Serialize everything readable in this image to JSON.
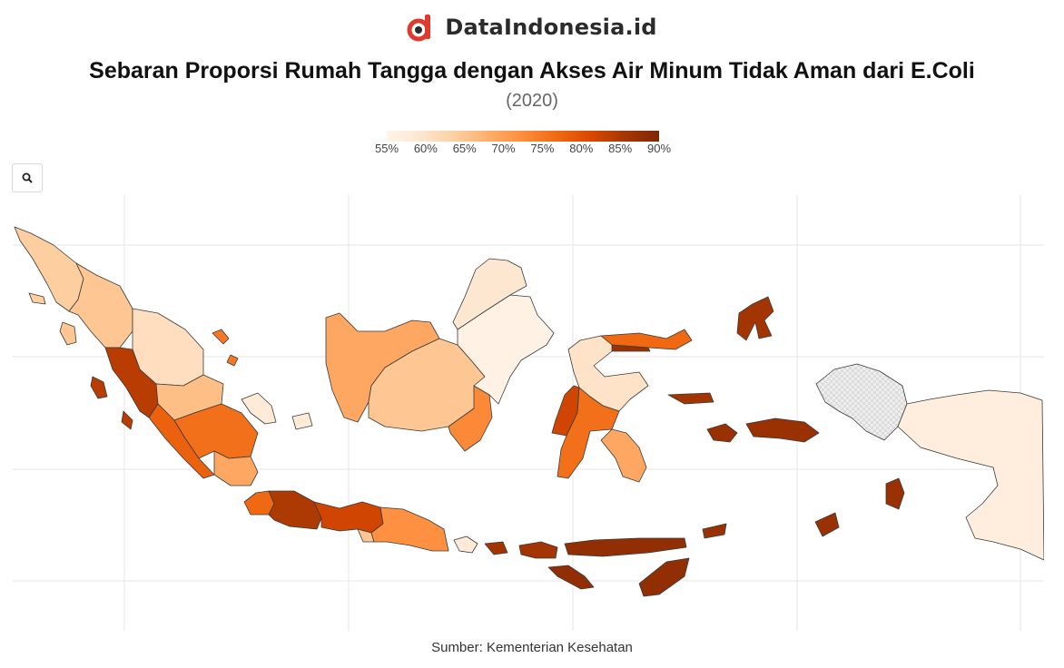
{
  "brand": {
    "name": "DataIndonesia.id"
  },
  "chart": {
    "title": "Sebaran Proporsi Rumah Tangga dengan Akses Air Minum Tidak Aman dari E.Coli",
    "subtitle": "(2020)",
    "source": "Sumber: Kementerian Kesehatan",
    "colors": {
      "low": "#fff5eb",
      "high": "#7f2704",
      "no_data": "#e5e5e5"
    }
  },
  "legend": {
    "ticks": [
      "55%",
      "60%",
      "65%",
      "70%",
      "75%",
      "80%",
      "85%",
      "90%"
    ],
    "min": 55,
    "max": 90
  },
  "toolbar": {
    "zoom_icon": "search-icon"
  },
  "chart_data": {
    "type": "choropleth",
    "value_unit": "%",
    "range": [
      55,
      90
    ],
    "regions": [
      {
        "name": "Aceh",
        "value": 64
      },
      {
        "name": "Sumatera Utara",
        "value": 65
      },
      {
        "name": "Riau",
        "value": 61
      },
      {
        "name": "Kepulauan Riau",
        "value": 75
      },
      {
        "name": "Sumatera Barat",
        "value": 84
      },
      {
        "name": "Jambi",
        "value": 66
      },
      {
        "name": "Sumatera Selatan",
        "value": 76
      },
      {
        "name": "Bengkulu",
        "value": 78
      },
      {
        "name": "Kepulauan Bangka Belitung",
        "value": 58
      },
      {
        "name": "Lampung",
        "value": 69
      },
      {
        "name": "Banten",
        "value": 77
      },
      {
        "name": "Jawa Barat",
        "value": 85
      },
      {
        "name": "Jawa Tengah",
        "value": 82
      },
      {
        "name": "DI Yogyakarta",
        "value": 65
      },
      {
        "name": "Jawa Timur",
        "value": 72
      },
      {
        "name": "Bali",
        "value": 58
      },
      {
        "name": "Nusa Tenggara Barat",
        "value": 86
      },
      {
        "name": "Nusa Tenggara Timur",
        "value": 88
      },
      {
        "name": "Kalimantan Barat",
        "value": 69
      },
      {
        "name": "Kalimantan Tengah",
        "value": 65
      },
      {
        "name": "Kalimantan Selatan",
        "value": 73
      },
      {
        "name": "Kalimantan Timur",
        "value": 56
      },
      {
        "name": "Kalimantan Utara",
        "value": 59
      },
      {
        "name": "Sulawesi Utara",
        "value": 77
      },
      {
        "name": "Gorontalo",
        "value": 87
      },
      {
        "name": "Sulawesi Tengah",
        "value": 60
      },
      {
        "name": "Sulawesi Barat",
        "value": 82
      },
      {
        "name": "Sulawesi Selatan",
        "value": 76
      },
      {
        "name": "Sulawesi Tenggara",
        "value": 69
      },
      {
        "name": "Maluku",
        "value": 87
      },
      {
        "name": "Maluku Utara",
        "value": 86
      },
      {
        "name": "Papua Barat",
        "value": null
      },
      {
        "name": "Papua",
        "value": 57
      }
    ]
  }
}
